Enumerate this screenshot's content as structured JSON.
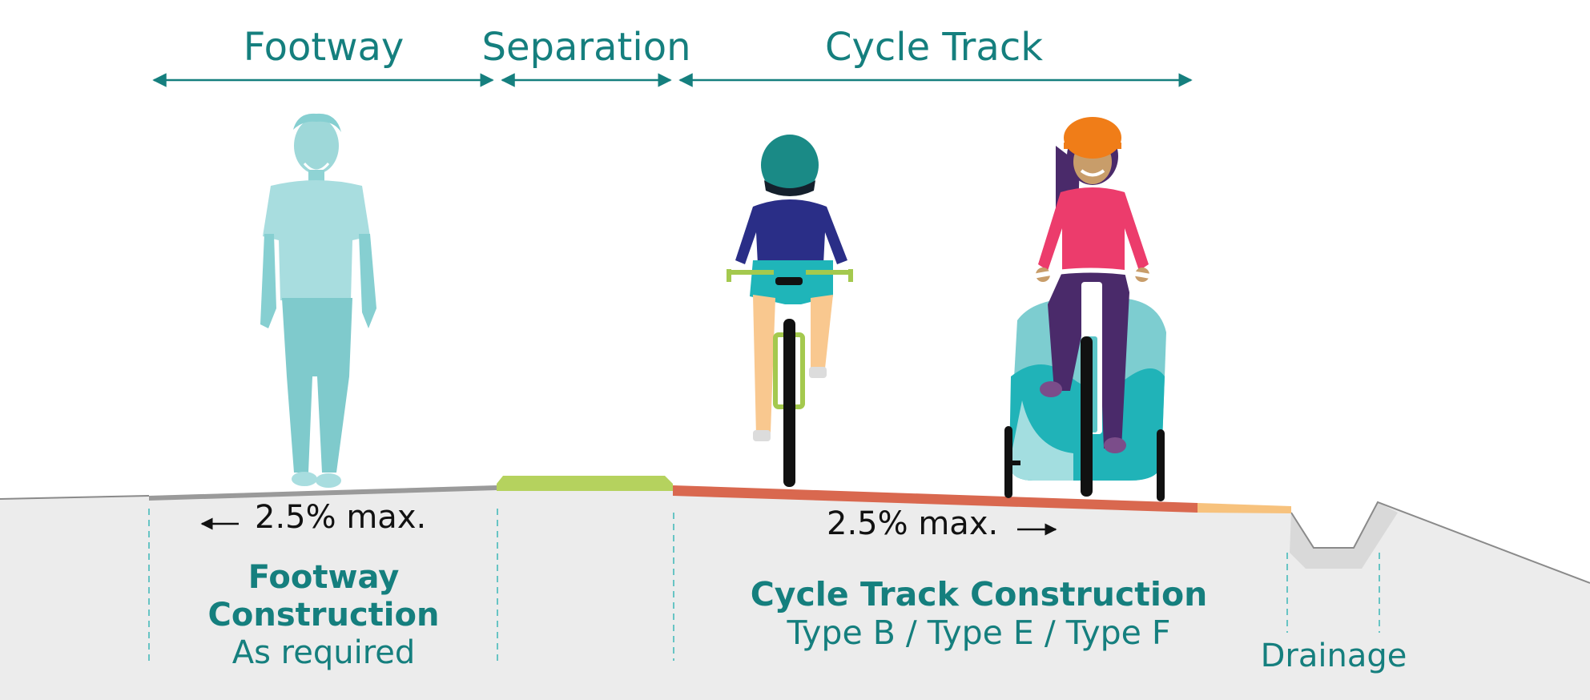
{
  "headers": {
    "footway": "Footway",
    "separation": "Separation",
    "cycle_track": "Cycle Track"
  },
  "slopes": {
    "footway": "2.5% max.",
    "cycle_track": "2.5% max."
  },
  "labels": {
    "footway_construction_1": "Footway",
    "footway_construction_2": "Construction",
    "footway_construction_3": "As required",
    "cycle_construction_1": "Cycle Track Construction",
    "cycle_construction_2": "Type B / Type E / Type F",
    "drainage": "Drainage"
  },
  "colors": {
    "teal_text": "#157f7e",
    "ground": "#ececec",
    "separation_strip": "#b5d25e",
    "cycle_surface": "#d9684f",
    "edge_strip": "#f7c27d",
    "footway_surface": "#9a9a9a"
  }
}
